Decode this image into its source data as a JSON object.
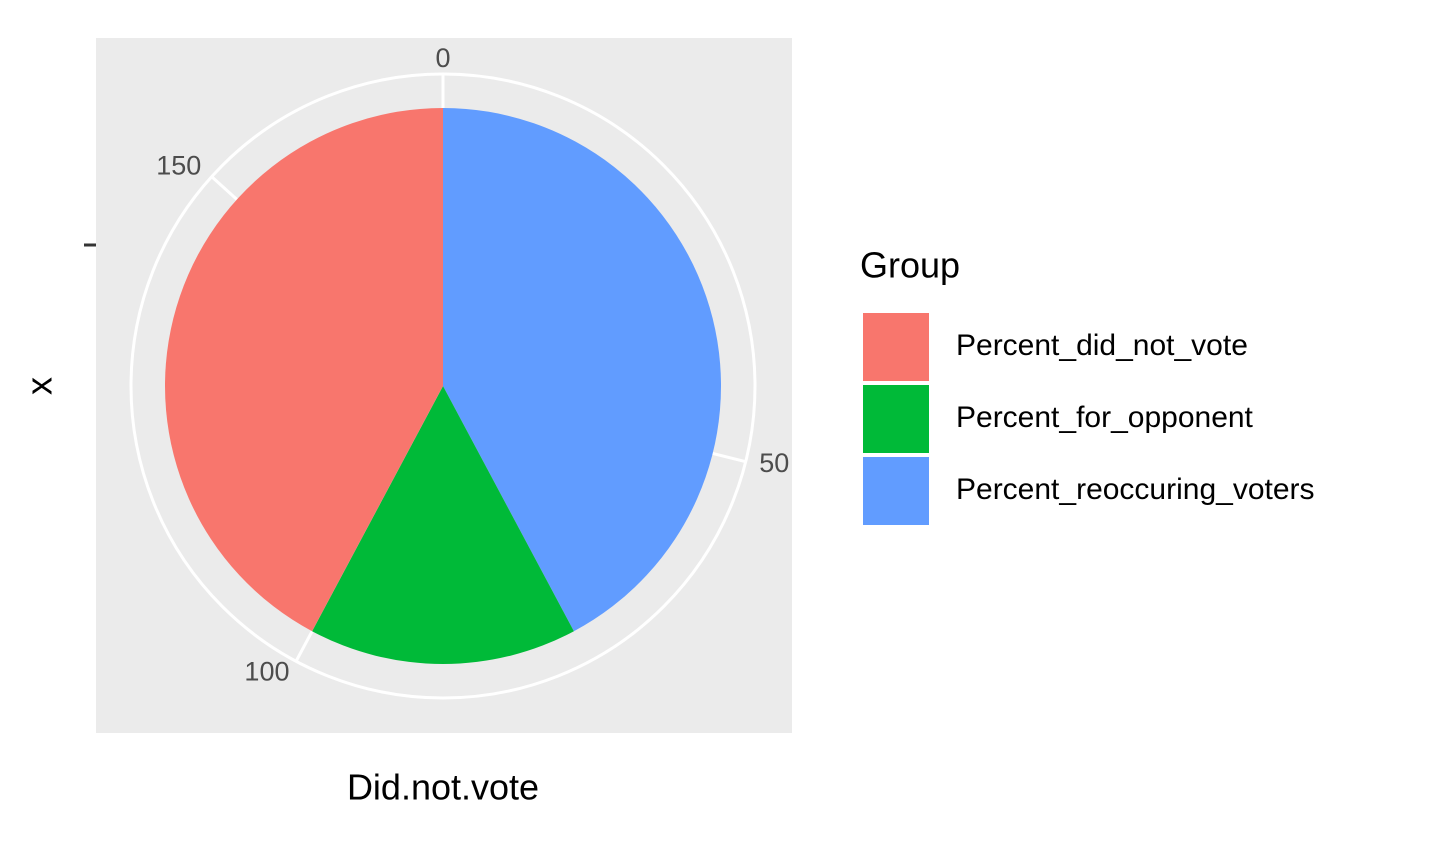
{
  "chart_data": {
    "type": "pie",
    "categories": [
      "Percent_did_not_vote",
      "Percent_for_opponent",
      "Percent_reoccuring_voters"
    ],
    "values": [
      73,
      27,
      73
    ],
    "colors": [
      "#f8766d",
      "#00ba38",
      "#619cff"
    ],
    "ylim": [
      0,
      173
    ],
    "yticks": [
      0,
      50,
      100,
      150
    ],
    "xlabel": "Did.not.vote",
    "ylabel": "x",
    "legend_title": "Group",
    "grid": true
  }
}
